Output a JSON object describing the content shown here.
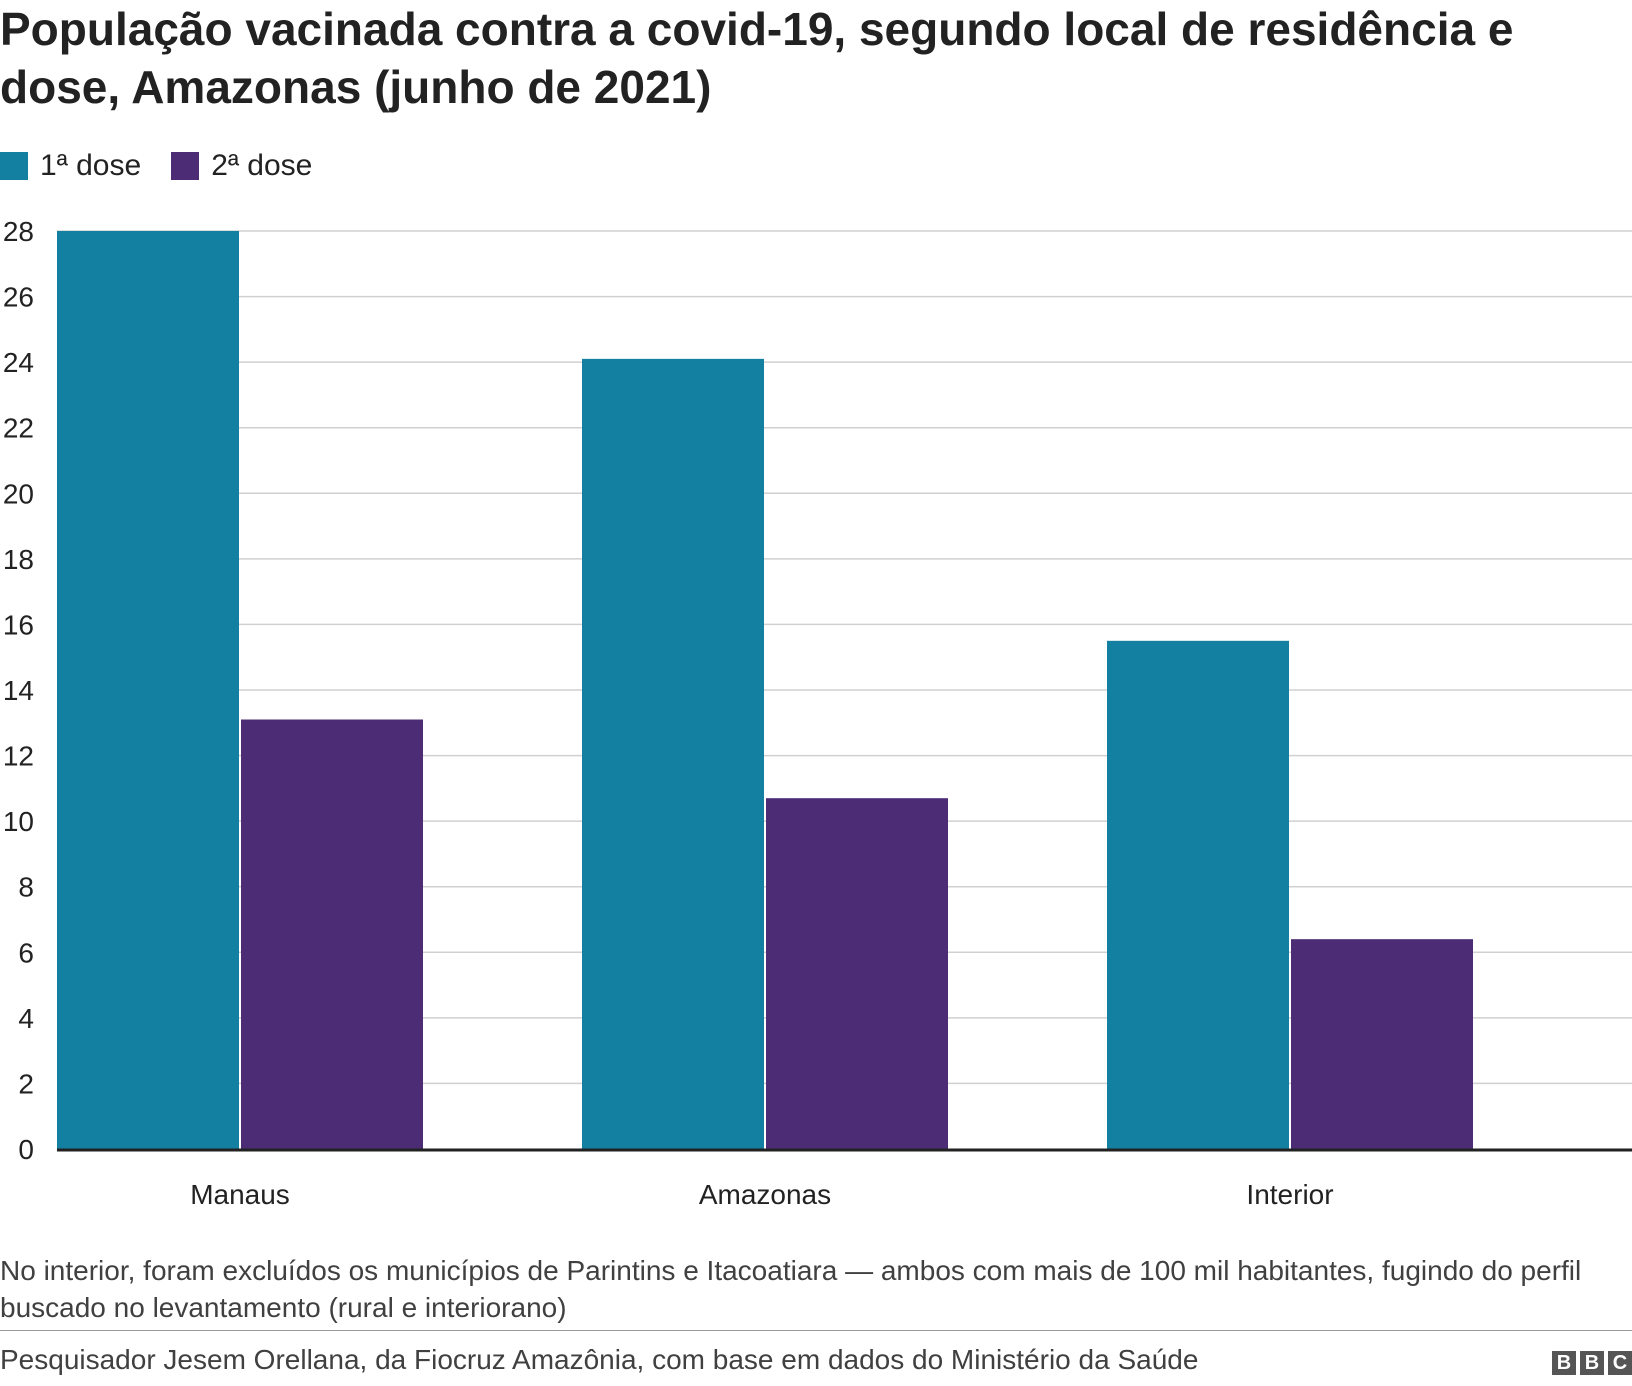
{
  "title": "População vacinada contra a covid-19, segundo local de residência e dose, Amazonas (junho de 2021)",
  "legend": [
    {
      "label": "1ª dose",
      "color": "#1380A1"
    },
    {
      "label": "2ª dose",
      "color": "#4B2C75"
    }
  ],
  "chart_data": {
    "type": "bar",
    "categories": [
      "Manaus",
      "Amazonas",
      "Interior"
    ],
    "series": [
      {
        "name": "1ª dose",
        "color": "#1380A1",
        "values": [
          28.0,
          24.1,
          15.5
        ]
      },
      {
        "name": "2ª dose",
        "color": "#4B2C75",
        "values": [
          13.1,
          10.7,
          6.4
        ]
      }
    ],
    "yticks": [
      0,
      2,
      4,
      6,
      8,
      10,
      12,
      14,
      16,
      18,
      20,
      22,
      24,
      26,
      28
    ],
    "ylim": [
      0,
      28
    ],
    "grid": true,
    "legend_position": "top-left"
  },
  "note": "No interior, foram excluídos os municípios de Parintins e Itacoatiara — ambos com mais de 100 mil habitantes, fugindo do perfil buscado no levantamento (rural e interiorano)",
  "source": "Pesquisador Jesem Orellana, da Fiocruz Amazônia, com base em dados do Ministério da Saúde",
  "logo": [
    "B",
    "B",
    "C"
  ]
}
